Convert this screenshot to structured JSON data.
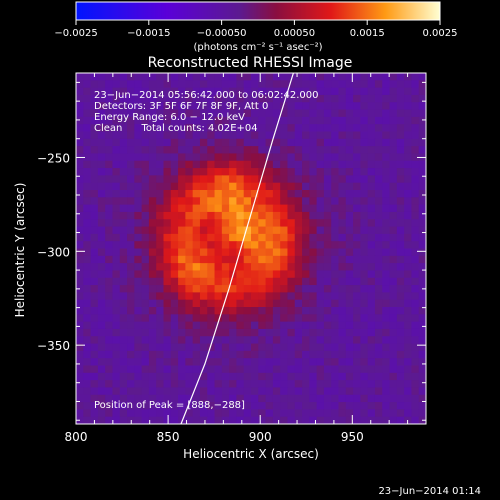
{
  "chart_data": {
    "type": "heatmap",
    "title": "Reconstructed RHESSI Image",
    "xlabel": "Heliocentric X (arcsec)",
    "ylabel": "Heliocentric Y (arcsec)",
    "xlim": [
      800,
      990
    ],
    "ylim": [
      -392,
      -205
    ],
    "x_ticks": [
      800,
      850,
      900,
      950
    ],
    "x_tick_labels": [
      "800",
      "850",
      "900",
      "950"
    ],
    "y_ticks": [
      -250,
      -300,
      -350
    ],
    "y_tick_labels": [
      "−250",
      "−300",
      "−350"
    ],
    "colorbar": {
      "range": [
        -0.0025,
        0.0025
      ],
      "ticks": [
        -0.0025,
        -0.0015,
        -0.0005,
        0.0005,
        0.0015,
        0.0025
      ],
      "tick_labels": [
        "−0.0025",
        "−0.0015",
        "−0.00050",
        "0.00050",
        "0.0015",
        "0.0025"
      ],
      "units_label": "(photons cm⁻² s⁻¹ asec⁻²)"
    },
    "annotations": [
      "23−Jun−2014 05:56:42.000 to 06:02:42.000",
      "Detectors: 3F 5F 6F 7F 8F 9F, Att 0",
      "Energy Range: 6.0 − 12.0 keV",
      "Clean      Total counts: 4.02E+04"
    ],
    "peak_label": "Position of Peak = [888,−288]",
    "peak": [
      888,
      -288
    ],
    "limb_curve": [
      [
        857,
        -392
      ],
      [
        870,
        -360
      ],
      [
        883,
        -320
      ],
      [
        895,
        -280
      ],
      [
        907,
        -240
      ],
      [
        918,
        -205
      ]
    ],
    "source": {
      "center": [
        883,
        -293
      ],
      "ring_radius": 35,
      "ring_width": 15,
      "ring_amplitude": 0.00135,
      "core_amplitude": 0.00115,
      "core_width": 9,
      "background": -0.0004
    }
  },
  "footer": {
    "date": "23−Jun−2014 01:14"
  }
}
